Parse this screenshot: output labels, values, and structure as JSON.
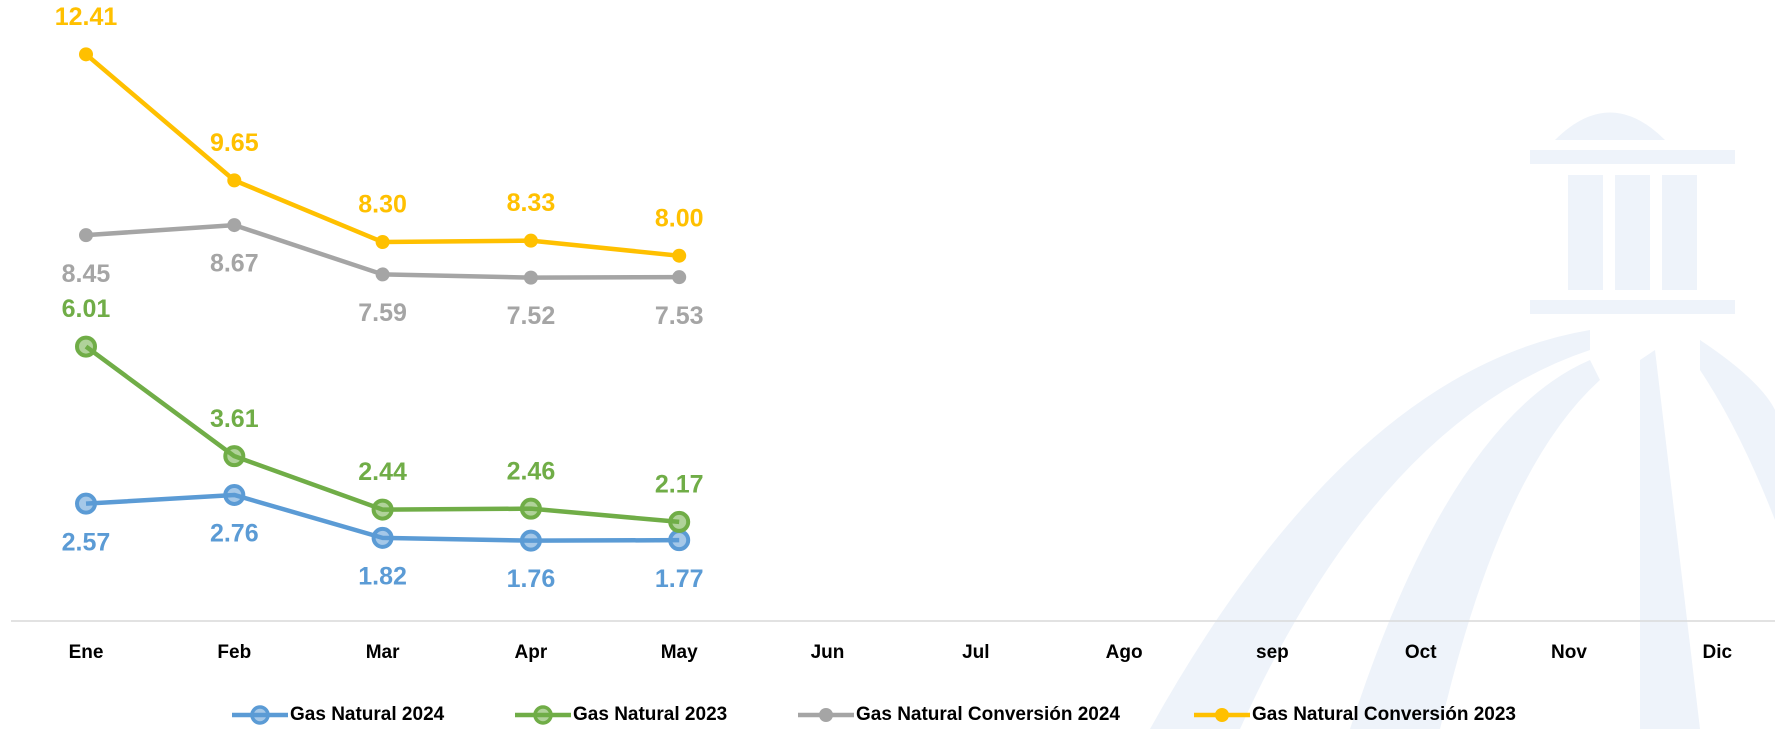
{
  "chart_data": {
    "type": "line",
    "categories": [
      "Ene",
      "Feb",
      "Mar",
      "Apr",
      "May",
      "Jun",
      "Jul",
      "Ago",
      "sep",
      "Oct",
      "Nov",
      "Dic"
    ],
    "ylim": [
      0,
      13.6
    ],
    "series": [
      {
        "name": "Gas Natural 2024",
        "color": "#5b9bd5",
        "values": [
          2.57,
          2.76,
          1.82,
          1.76,
          1.77,
          null,
          null,
          null,
          null,
          null,
          null,
          null
        ],
        "value_labels": [
          "2.57",
          "2.76",
          "1.82",
          "1.76",
          "1.77",
          null,
          null,
          null,
          null,
          null,
          null,
          null
        ]
      },
      {
        "name": "Gas Natural 2023",
        "color": "#70ad47",
        "values": [
          6.01,
          3.61,
          2.44,
          2.46,
          2.17,
          null,
          null,
          null,
          null,
          null,
          null,
          null
        ],
        "value_labels": [
          "6.01",
          "3.61",
          "2.44",
          "2.46",
          "2.17",
          null,
          null,
          null,
          null,
          null,
          null,
          null
        ]
      },
      {
        "name": "Gas Natural Conversión 2024",
        "color": "#a5a5a5",
        "values": [
          8.45,
          8.67,
          7.59,
          7.52,
          7.53,
          null,
          null,
          null,
          null,
          null,
          null,
          null
        ],
        "value_labels": [
          "8.45",
          "8.67",
          "7.59",
          "7.52",
          "7.53",
          null,
          null,
          null,
          null,
          null,
          null,
          null
        ]
      },
      {
        "name": "Gas Natural Conversión 2023",
        "color": "#ffc000",
        "values": [
          12.41,
          9.65,
          8.3,
          8.33,
          8.0,
          null,
          null,
          null,
          null,
          null,
          null,
          null
        ],
        "value_labels": [
          "12.41",
          "9.65",
          "8.30",
          "8.33",
          "8.00",
          null,
          null,
          null,
          null,
          null,
          null,
          null
        ]
      }
    ]
  }
}
